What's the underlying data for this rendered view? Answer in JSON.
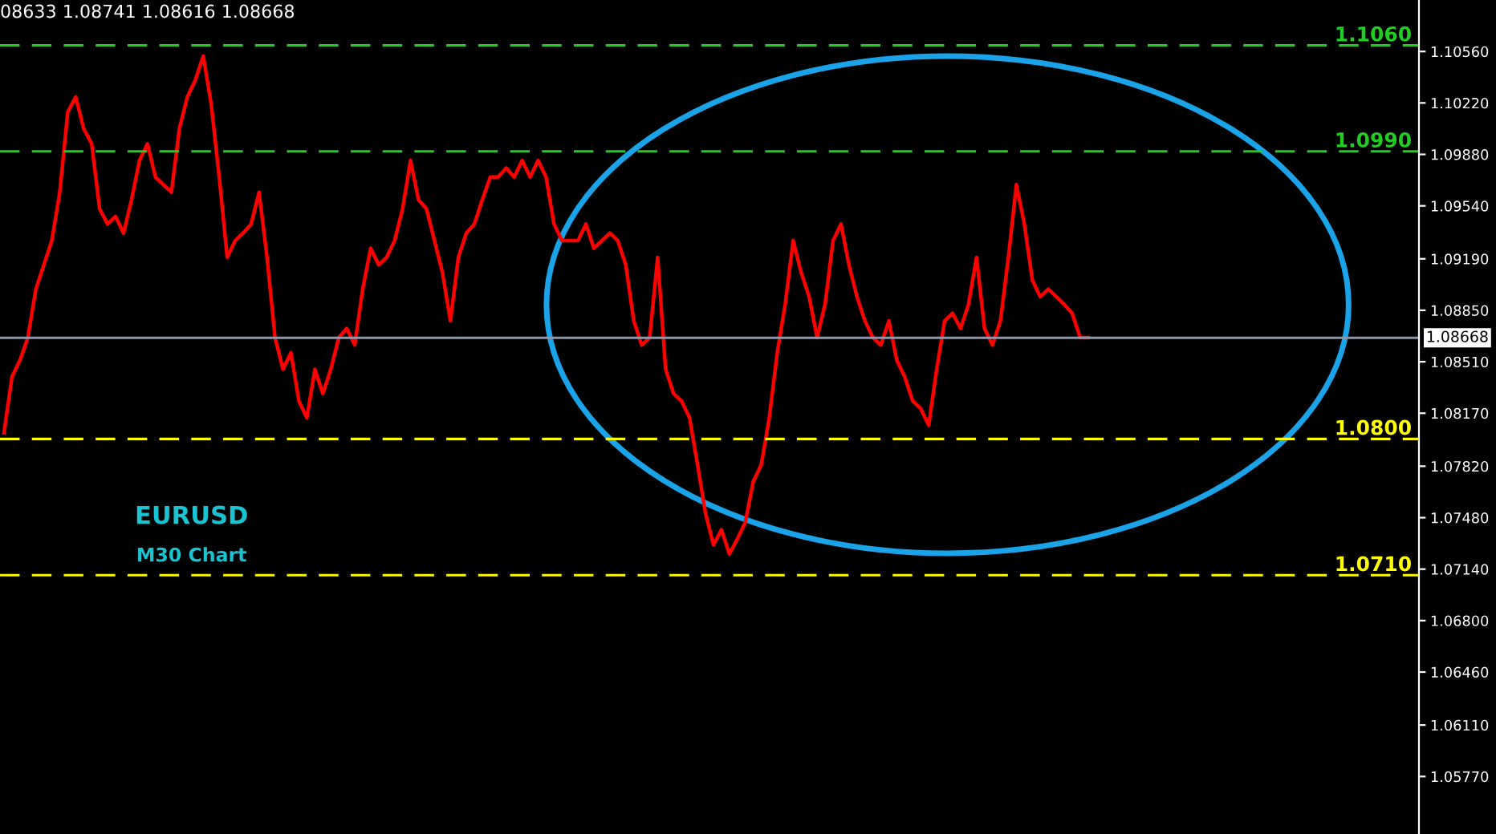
{
  "chart_data": {
    "type": "line",
    "title": "08633 1.08741 1.08616 1.08668",
    "annotations": [
      "EURUSD",
      "M30 Chart"
    ],
    "categories": [
      null,
      null,
      null,
      null,
      null,
      null,
      null,
      null,
      null,
      null,
      null,
      null,
      null,
      null,
      null,
      null,
      null,
      null,
      null,
      null,
      null,
      null,
      null,
      null,
      null,
      null,
      null,
      null,
      null,
      null,
      null,
      null,
      null,
      null,
      null,
      null,
      null,
      null,
      null,
      null,
      null,
      null,
      null,
      null,
      null,
      null,
      null,
      null,
      null,
      null,
      null,
      null,
      null,
      null,
      null,
      null,
      null,
      null,
      null,
      null,
      null,
      null,
      null,
      null,
      null,
      null,
      null,
      null,
      null,
      null,
      null,
      null,
      null,
      null,
      null,
      null,
      null,
      null,
      null,
      null,
      null,
      null,
      null,
      null,
      null,
      null,
      null,
      null,
      null,
      null,
      null,
      null,
      null,
      null,
      null,
      null,
      null,
      null,
      null,
      null,
      null,
      null,
      null,
      null,
      null,
      null,
      null,
      null,
      null,
      null,
      null,
      null,
      null,
      null,
      null,
      null,
      null,
      null,
      null,
      null,
      null,
      null,
      null,
      null,
      null,
      null,
      null,
      null,
      null,
      null,
      null,
      null,
      null,
      null,
      null,
      null,
      null,
      null,
      null,
      null,
      null,
      null,
      null,
      null,
      null,
      null,
      null,
      null,
      null,
      null,
      null,
      null,
      null,
      null,
      null,
      null,
      null,
      null,
      null,
      null,
      null,
      null,
      null,
      null,
      null,
      null,
      null,
      null,
      null,
      null,
      null,
      null,
      null,
      null,
      null,
      null,
      null,
      null
    ],
    "series": [
      {
        "color": "#ff0000",
        "values": [
          1.0804,
          1.0841,
          1.0852,
          1.0867,
          1.0899,
          1.0915,
          1.0931,
          1.0963,
          1.1016,
          1.1026,
          1.1005,
          1.0995,
          1.0952,
          1.0942,
          1.0947,
          1.0936,
          1.0958,
          1.0984,
          1.0995,
          1.0973,
          1.0968,
          1.0963,
          1.1005,
          1.1026,
          1.1037,
          1.1053,
          1.1021,
          1.0973,
          1.092,
          1.0931,
          1.0936,
          1.0942,
          1.0963,
          1.092,
          1.0867,
          1.0846,
          1.0857,
          1.0825,
          1.0814,
          1.0846,
          1.083,
          1.0846,
          1.0867,
          1.0873,
          1.0862,
          1.0899,
          1.0926,
          1.0915,
          1.092,
          1.0931,
          1.0952,
          1.0984,
          1.0958,
          1.0952,
          1.0931,
          1.091,
          1.0878,
          1.092,
          1.0936,
          1.0942,
          1.0958,
          1.0973,
          1.0973,
          1.0979,
          1.0973,
          1.0984,
          1.0973,
          1.0984,
          1.0973,
          1.0942,
          1.0931,
          1.0931,
          1.0931,
          1.0942,
          1.0926,
          1.0931,
          1.0936,
          1.0931,
          1.0915,
          1.0878,
          1.0862,
          1.0867,
          1.092,
          1.0846,
          1.083,
          1.0825,
          1.0814,
          1.0783,
          1.0751,
          1.073,
          1.074,
          1.0724,
          1.0734,
          1.0745,
          1.0772,
          1.0783,
          1.0814,
          1.0857,
          1.0889,
          1.0931,
          1.091,
          1.0894,
          1.0867,
          1.0889,
          1.0931,
          1.0942,
          1.0915,
          1.0894,
          1.0878,
          1.0867,
          1.0862,
          1.0878,
          1.0852,
          1.0841,
          1.0825,
          1.082,
          1.0809,
          1.0846,
          1.0878,
          1.0883,
          1.0873,
          1.0889,
          1.092,
          1.0873,
          1.0862,
          1.0878,
          1.092,
          1.0968,
          1.0942,
          1.0905,
          1.0894,
          1.0899,
          1.0894,
          1.0889,
          1.0883,
          1.0867,
          1.0867,
          null,
          null,
          null,
          null,
          null,
          null,
          null,
          null,
          null,
          null,
          null,
          null,
          null,
          null,
          null,
          null,
          null,
          null,
          null,
          null,
          null,
          null,
          null,
          null,
          null,
          null,
          null,
          null,
          null,
          null,
          null,
          null,
          null,
          null,
          null,
          null,
          null,
          null,
          null,
          null,
          null
        ]
      }
    ],
    "ylim": [
      1.0539,
      1.109
    ],
    "yticks": [
      {
        "value": 1.0577,
        "label": "1.05770"
      },
      {
        "value": 1.0611,
        "label": "1.06110"
      },
      {
        "value": 1.0646,
        "label": "1.06460"
      },
      {
        "value": 1.068,
        "label": "1.06800"
      },
      {
        "value": 1.0714,
        "label": "1.07140"
      },
      {
        "value": 1.0748,
        "label": "1.07480"
      },
      {
        "value": 1.0782,
        "label": "1.07820"
      },
      {
        "value": 1.0817,
        "label": "1.08170"
      },
      {
        "value": 1.0851,
        "label": "1.08510"
      },
      {
        "value": 1.0885,
        "label": "1.08850"
      },
      {
        "value": 1.0919,
        "label": "1.09190"
      },
      {
        "value": 1.0954,
        "label": "1.09540"
      },
      {
        "value": 1.0988,
        "label": "1.09880"
      },
      {
        "value": 1.1022,
        "label": "1.10220"
      },
      {
        "value": 1.1056,
        "label": "1.10560"
      }
    ],
    "ref_lines": [
      {
        "axis": "y",
        "value": 1.106,
        "label": "1.1060",
        "color": "#22cc22",
        "line_style": "dashed"
      },
      {
        "axis": "y",
        "value": 1.099,
        "label": "1.0990",
        "color": "#22cc22",
        "line_style": "dashed"
      },
      {
        "axis": "y",
        "value": 1.08,
        "label": "1.0800",
        "color": "#ffff00",
        "line_style": "dashed"
      },
      {
        "axis": "y",
        "value": 1.071,
        "label": "1.0710",
        "color": "#ffff00",
        "line_style": "dashed"
      },
      {
        "axis": "y",
        "value": 1.08668,
        "label": "1.08668",
        "color": "#8c96a8",
        "line_style": "solid"
      }
    ],
    "grid": false,
    "legend": false,
    "tick_labels": "y"
  }
}
